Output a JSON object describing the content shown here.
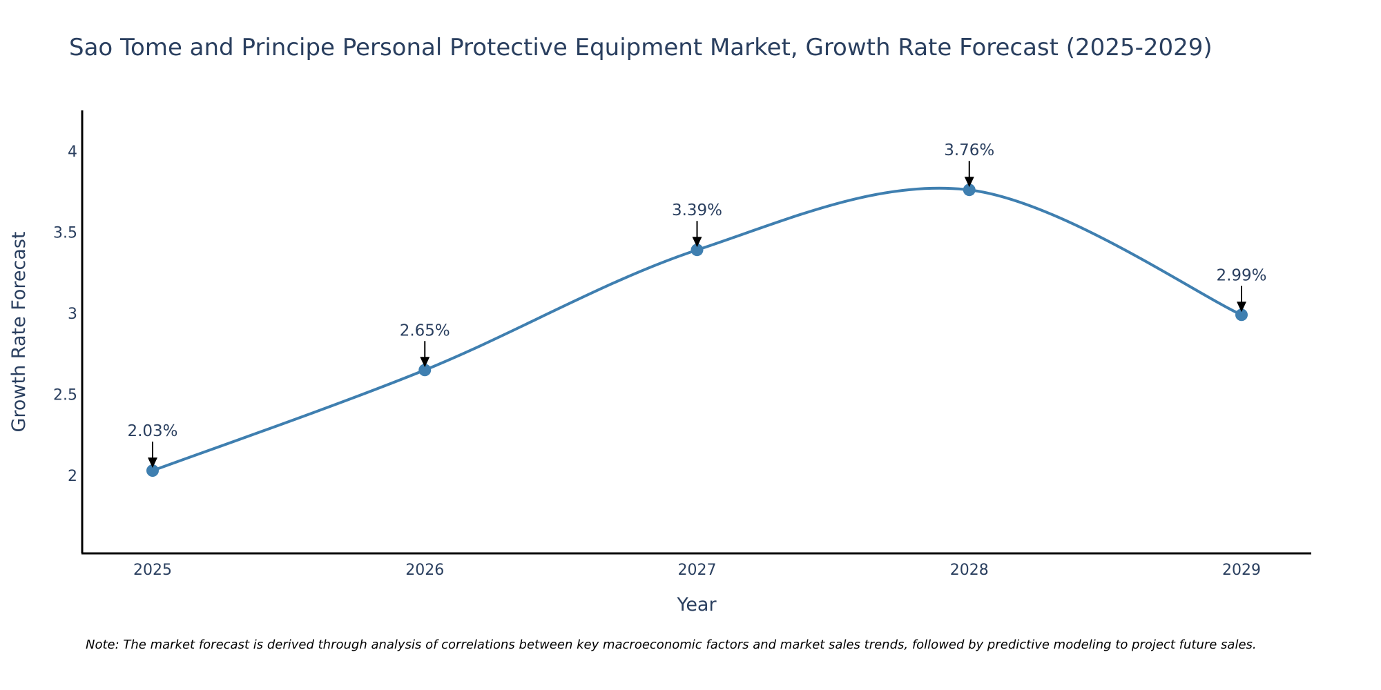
{
  "chart_data": {
    "type": "line",
    "title": "Sao Tome and Principe Personal Protective Equipment Market, Growth Rate Forecast (2025-2029)",
    "xlabel": "Year",
    "ylabel": "Growth Rate Forecast",
    "categories": [
      "2025",
      "2026",
      "2027",
      "2028",
      "2029"
    ],
    "values": [
      2.03,
      2.65,
      3.39,
      3.76,
      2.99
    ],
    "data_labels": [
      "2.03%",
      "2.65%",
      "3.39%",
      "3.76%",
      "2.99%"
    ],
    "yticks": [
      2,
      2.5,
      3,
      3.5,
      4
    ],
    "ytick_labels": [
      "2",
      "2.5",
      "3",
      "3.5",
      "4"
    ],
    "ylim": [
      1.52,
      4.25
    ],
    "grid": false,
    "line_shape": "spline",
    "series_color": "#3f7fb0",
    "axis_color": "#000000",
    "text_color": "#2a3f5f"
  },
  "note": "Note: The market forecast is derived through analysis of correlations between key macroeconomic factors and market sales trends, followed by predictive modeling to project future sales."
}
